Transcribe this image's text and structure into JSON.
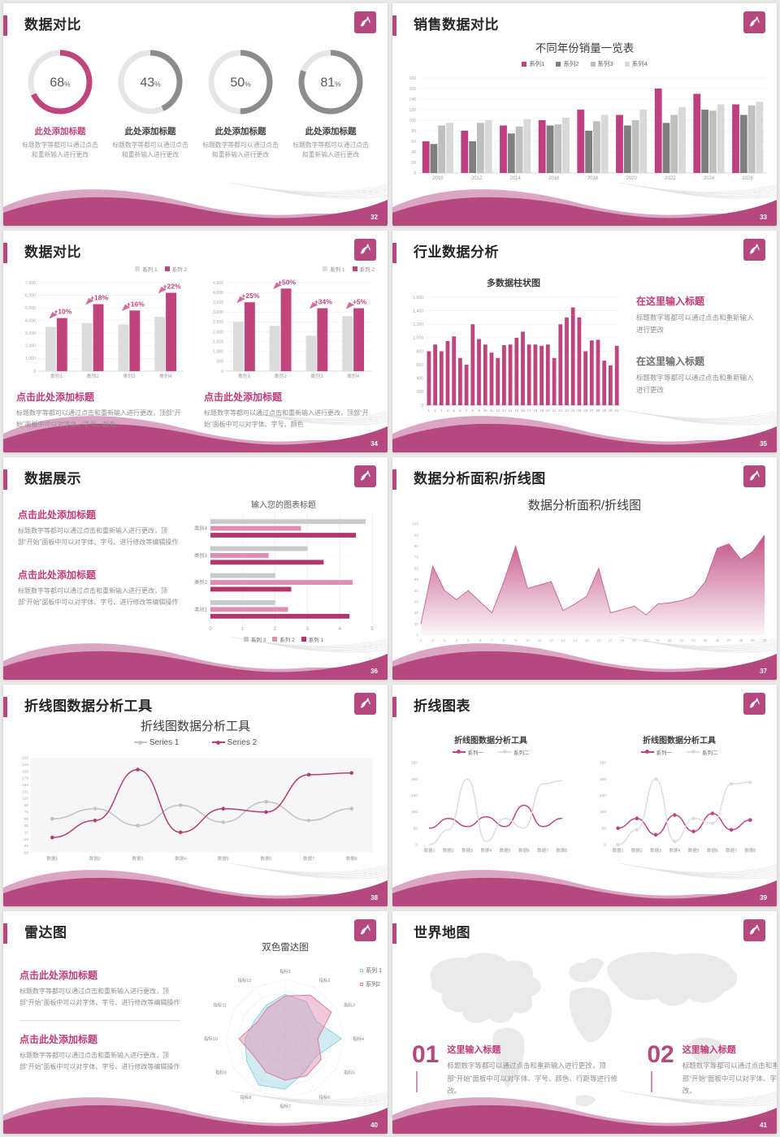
{
  "theme": {
    "magenta": "#b5487e",
    "magenta_light": "#dba6c4",
    "accent": "#c13b79",
    "pink": "#c0457f",
    "gray_dark": "#7f7f7f",
    "gray_mid": "#bfbfbf",
    "gray_light": "#d9d9d9",
    "cyan": "#8fd2e0"
  },
  "slides": [
    {
      "page": "32",
      "title": "数据对比",
      "items": [
        {
          "title": "此处添加标题",
          "body": "标题数字等都可以通过点击和重新输入进行更改"
        },
        {
          "title": "此处添加标题",
          "body": "标题数字等都可以通过点击和重新输入进行更改"
        },
        {
          "title": "此处添加标题",
          "body": "标题数字等都可以通过点击和重新输入进行更改"
        },
        {
          "title": "此处添加标题",
          "body": "标题数字等都可以通过点击和重新输入进行更改"
        }
      ]
    },
    {
      "page": "33",
      "title": "销售数据对比",
      "chart_title": "不同年份销量一览表"
    },
    {
      "page": "34",
      "title": "数据对比",
      "blocks": [
        {
          "heading": "点击此处添加标题",
          "body": "标题数字等都可以通过点击和重新输入进行更改，顶部“开始”面板中可以对字体、字号、颜色"
        },
        {
          "heading": "点击此处添加标题",
          "body": "标题数字等都可以通过点击和重新输入进行更改，顶部“开始”面板中可以对字体、字号、颜色"
        }
      ]
    },
    {
      "page": "35",
      "title": "行业数据分析",
      "chart_title": "多数据柱状图",
      "blocks": [
        {
          "heading": "在这里输入标题",
          "body": "标题数字等都可以通过点击和重新输入进行更改"
        },
        {
          "heading": "在这里输入标题",
          "body": "标题数字等都可以通过点击和重新输入进行更改"
        }
      ]
    },
    {
      "page": "36",
      "title": "数据展示",
      "chart_title": "输入您的图表标题",
      "blocks": [
        {
          "heading": "点击此处添加标题",
          "body": "标题数字等都可以通过点击和重新输入进行更改，顶部“开始”面板中可以对字体、字号、进行修改等编辑操作"
        },
        {
          "heading": "点击此处添加标题",
          "body": "标题数字等都可以通过点击和重新输入进行更改，顶部“开始”面板中可以对字体、字号、进行修改等编辑操作"
        }
      ]
    },
    {
      "page": "37",
      "title": "数据分析面积/折线图",
      "chart_title": "数据分析面积/折线图"
    },
    {
      "page": "38",
      "title": "折线图数据分析工具",
      "chart_title": "折线图数据分析工具"
    },
    {
      "page": "39",
      "title": "折线图表",
      "chart_titles": [
        "折线图数据分析工具",
        "折线图数据分析工具"
      ]
    },
    {
      "page": "40",
      "title": "雷达图",
      "chart_title": "双色雷达图",
      "blocks": [
        {
          "heading": "点击此处添加标题",
          "body": "标题数字等都可以通过点击和重新输入进行更改，顶部“开始”面板中可以对字体、字号、进行修改等编辑操作"
        },
        {
          "heading": "点击此处添加标题",
          "body": "标题数字等都可以通过点击和重新输入进行更改，顶部“开始”面板中可以对字体、字号、进行修改等编辑操作"
        }
      ]
    },
    {
      "page": "41",
      "title": "世界地图",
      "items": [
        {
          "num": "01",
          "heading": "这里输入标题",
          "body": "标题数字等都可以通过点击和重新输入进行更改，顶部“开始”面板中可以对字体、字号、颜色、行距等进行修改。"
        },
        {
          "num": "02",
          "heading": "这里输入标题",
          "body": "标题数字等都可以通过点击和重新输入进行更改，顶部“开始”面板中可以对字体、字号、颜色、行距等进行修改。"
        }
      ]
    }
  ],
  "chart_data": [
    {
      "type": "donut",
      "values": [
        68,
        43,
        50,
        81
      ],
      "unit": "%",
      "colors": [
        "#c0457f",
        "#8c8c8c",
        "#8c8c8c",
        "#8c8c8c"
      ],
      "track": "#e6e6e6"
    },
    {
      "type": "column",
      "title": "不同年份销量一览表",
      "legend": "top",
      "ylim": [
        0,
        180
      ],
      "ystep": 20,
      "bar_frac": 0.8,
      "cat_fs": 6,
      "categories": [
        "2010",
        "2012",
        "2014",
        "2016",
        "2018",
        "2020",
        "2022",
        "2024",
        "2026"
      ],
      "series": [
        {
          "name": "系列1",
          "color": "#bf4080",
          "values": [
            60,
            80,
            90,
            100,
            120,
            110,
            160,
            150,
            130
          ]
        },
        {
          "name": "系列2",
          "color": "#7f7f7f",
          "values": [
            55,
            60,
            75,
            90,
            80,
            90,
            95,
            120,
            110
          ]
        },
        {
          "name": "系列3",
          "color": "#bfbfbf",
          "values": [
            90,
            95,
            88,
            92,
            98,
            100,
            110,
            118,
            128
          ]
        },
        {
          "name": "系列4",
          "color": "#d9d9d9",
          "values": [
            95,
            100,
            102,
            105,
            110,
            120,
            125,
            130,
            135
          ]
        }
      ]
    },
    {
      "type": "column",
      "ylim": [
        0,
        7000
      ],
      "ystep": 1000,
      "bar_frac": 0.6,
      "cat_fs": 6,
      "categories": [
        "类别1",
        "类别2",
        "类别3",
        "类别4"
      ],
      "annotations": [
        "+10%",
        "+18%",
        "+16%",
        "+22%"
      ],
      "annot_color": "#c0457f",
      "series": [
        {
          "name": "系列 1",
          "color": "#dcdcdc",
          "values": [
            3500,
            3800,
            3700,
            4300
          ]
        },
        {
          "name": "系列 2",
          "color": "#c0457f",
          "values": [
            4200,
            5300,
            4800,
            6200
          ]
        }
      ]
    },
    {
      "type": "column",
      "ylim": [
        0,
        4500
      ],
      "ystep": 500,
      "bar_frac": 0.6,
      "cat_fs": 6,
      "categories": [
        "类别1",
        "类别2",
        "类别3",
        "类别4"
      ],
      "annotations": [
        "+25%",
        "+50%",
        "+34%",
        "+5%"
      ],
      "annot_color": "#c0457f",
      "series": [
        {
          "name": "系列 1",
          "color": "#dcdcdc",
          "values": [
            2500,
            2300,
            1800,
            2800
          ]
        },
        {
          "name": "系列 2",
          "color": "#c0457f",
          "values": [
            3500,
            4200,
            3200,
            3200
          ]
        }
      ]
    },
    {
      "type": "column",
      "title": "多数据柱状图",
      "ylim": [
        0,
        1600
      ],
      "ystep": 200,
      "bar_frac": 0.62,
      "cat_fs": 4.2,
      "categories": [
        "1",
        "2",
        "3",
        "4",
        "5",
        "6",
        "7",
        "8",
        "9",
        "10",
        "11",
        "12",
        "13",
        "14",
        "15",
        "16",
        "17",
        "18",
        "19",
        "20",
        "21",
        "22",
        "23",
        "24",
        "25",
        "26",
        "27",
        "28",
        "29",
        "30",
        "31"
      ],
      "series": [
        {
          "name": "数据",
          "color": "#c0457f",
          "values": [
            800,
            900,
            800,
            950,
            1020,
            700,
            600,
            1200,
            980,
            900,
            780,
            700,
            890,
            900,
            1000,
            1090,
            900,
            900,
            880,
            900,
            700,
            1200,
            1300,
            1450,
            1300,
            800,
            960,
            970,
            660,
            590,
            880
          ]
        }
      ]
    },
    {
      "type": "hbar",
      "title": "输入您的图表标题",
      "xlim": [
        0,
        5
      ],
      "xstep": 1,
      "categories": [
        "类别4",
        "类别3",
        "类别2",
        "类别1"
      ],
      "series": [
        {
          "name": "系列 3",
          "color": "#c9c9c9",
          "values": [
            4.8,
            3.0,
            2.0,
            2.0
          ]
        },
        {
          "name": "系列 2",
          "color": "#e08cb4",
          "values": [
            2.8,
            1.8,
            4.4,
            2.4
          ]
        },
        {
          "name": "系列 1",
          "color": "#b2356d",
          "values": [
            4.5,
            3.5,
            2.5,
            4.3
          ]
        }
      ]
    },
    {
      "type": "area",
      "title": "数据分析面积/折线图",
      "ylim": [
        0,
        100
      ],
      "ystep": 10,
      "color": "#c0457f",
      "line_color": "#c2608d",
      "x": [
        "1",
        "2",
        "3",
        "4",
        "5",
        "6",
        "7",
        "8",
        "9",
        "10",
        "11",
        "12",
        "13",
        "14",
        "15",
        "16",
        "17",
        "18",
        "19",
        "20",
        "21",
        "22",
        "23",
        "24",
        "25",
        "26",
        "27",
        "28",
        "29",
        "30"
      ],
      "values": [
        10,
        62,
        40,
        32,
        40,
        30,
        20,
        48,
        80,
        42,
        45,
        48,
        22,
        28,
        35,
        60,
        20,
        23,
        26,
        18,
        28,
        29,
        31,
        35,
        48,
        78,
        82,
        68,
        75,
        90
      ]
    },
    {
      "type": "line",
      "title": "折线图数据分析工具",
      "ylim": [
        -50,
        230
      ],
      "ystep": 20,
      "plot_bg": "#f6f6f6",
      "xlabels": [
        "数据1",
        "数据2",
        "数据3",
        "数据4",
        "数据5",
        "数据6",
        "数据7",
        "数据8"
      ],
      "series": [
        {
          "name": "Series 1",
          "color": "#c3c3c3",
          "marker": true,
          "values": [
            50,
            80,
            30,
            90,
            40,
            100,
            45,
            80
          ]
        },
        {
          "name": "Series 2",
          "color": "#b63d75",
          "marker": true,
          "values": [
            -5,
            45,
            195,
            10,
            80,
            70,
            180,
            185
          ]
        }
      ]
    },
    {
      "type": "line",
      "ylim": [
        0,
        250
      ],
      "ystep": 50,
      "xlabels": [
        "数据1",
        "数据2",
        "数据3",
        "数据4",
        "数据5",
        "数据6",
        "数据7",
        "数据8"
      ],
      "series": [
        {
          "name": "系列一",
          "color": "#c0457f",
          "marker": false,
          "values": [
            50,
            80,
            55,
            85,
            55,
            120,
            55,
            80
          ]
        },
        {
          "name": "系列二",
          "color": "#dddddd",
          "marker": false,
          "values": [
            0,
            45,
            200,
            10,
            80,
            50,
            185,
            195
          ]
        }
      ]
    },
    {
      "type": "line",
      "ylim": [
        0,
        250
      ],
      "ystep": 50,
      "xlabels": [
        "数据1",
        "数据2",
        "数据3",
        "数据4",
        "数据5",
        "数据6",
        "数据7",
        "数据8"
      ],
      "series": [
        {
          "name": "系列一",
          "color": "#c0457f",
          "marker": true,
          "values": [
            50,
            80,
            30,
            90,
            40,
            95,
            45,
            75
          ]
        },
        {
          "name": "系列二",
          "color": "#dddddd",
          "marker": true,
          "values": [
            0,
            45,
            200,
            10,
            80,
            65,
            185,
            190
          ]
        }
      ]
    },
    {
      "type": "radar",
      "title": "双色雷达图",
      "rmax": 100,
      "axes": [
        "指标1",
        "指标2",
        "指标3",
        "指标4",
        "指标5",
        "指标6",
        "指标7",
        "指标8",
        "指标9",
        "指标10",
        "指标11",
        "指标12"
      ],
      "series": [
        {
          "name": "系列 1",
          "color": "#8fd2e0",
          "values": [
            75,
            72,
            60,
            95,
            60,
            65,
            85,
            90,
            75,
            68,
            60,
            65
          ]
        },
        {
          "name": "系列2",
          "color": "#df7fa5",
          "values": [
            72,
            85,
            90,
            55,
            70,
            72,
            70,
            65,
            60,
            78,
            55,
            60
          ]
        }
      ]
    }
  ]
}
